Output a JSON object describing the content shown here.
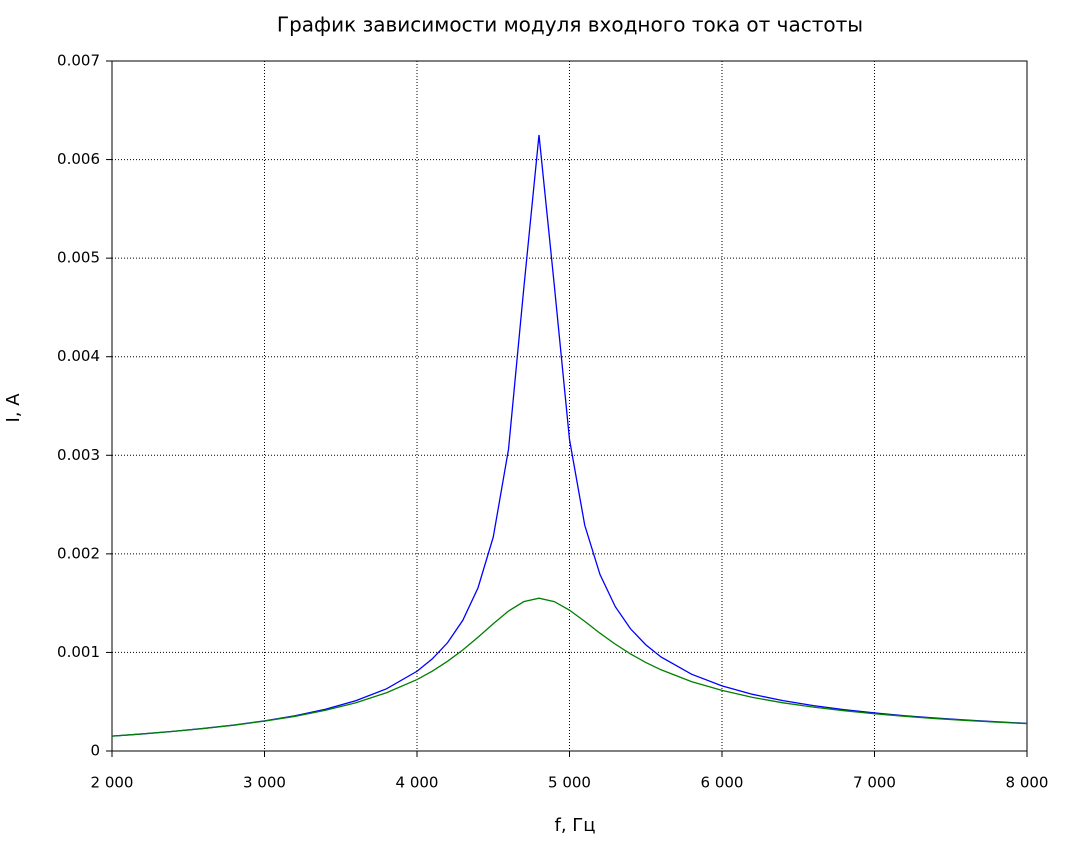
{
  "chart_data": {
    "type": "line",
    "title": "График зависимости модуля входного тока от частоты",
    "xlabel": "f, Гц",
    "ylabel": "I, A",
    "x": [
      2000,
      2200,
      2400,
      2600,
      2800,
      3000,
      3200,
      3400,
      3600,
      3800,
      4000,
      4100,
      4200,
      4300,
      4400,
      4500,
      4600,
      4700,
      4800,
      4900,
      5000,
      5100,
      5200,
      5300,
      5400,
      5500,
      5600,
      5800,
      6000,
      6200,
      6400,
      6600,
      6800,
      7000,
      7200,
      7400,
      7600,
      7800,
      8000
    ],
    "series": [
      {
        "color": "#0000ff",
        "values": [
          0.000151,
          0.000173,
          0.000199,
          0.000229,
          0.000264,
          0.000306,
          0.000358,
          0.000424,
          0.000511,
          0.000631,
          0.000809,
          0.000934,
          0.001098,
          0.001325,
          0.001655,
          0.00217,
          0.00306,
          0.00469,
          0.00625,
          0.00473,
          0.00316,
          0.00229,
          0.00179,
          0.001465,
          0.00124,
          0.001078,
          0.000954,
          0.000779,
          0.000661,
          0.000575,
          0.000511,
          0.00046,
          0.00042,
          0.000386,
          0.000358,
          0.000334,
          0.000314,
          0.000296,
          0.00028
        ]
      },
      {
        "color": "#007f00",
        "values": [
          0.000151,
          0.000174,
          0.000199,
          0.000228,
          0.000262,
          0.000303,
          0.000352,
          0.000413,
          0.000489,
          0.000591,
          0.000725,
          0.00081,
          0.00091,
          0.001025,
          0.001154,
          0.001291,
          0.00142,
          0.001515,
          0.00155,
          0.001516,
          0.001429,
          0.001315,
          0.001195,
          0.001084,
          0.000985,
          0.000898,
          0.000824,
          0.000704,
          0.000615,
          0.000544,
          0.000489,
          0.000445,
          0.000409,
          0.000378,
          0.000352,
          0.000329,
          0.00031,
          0.000293,
          0.000278
        ]
      }
    ],
    "xlim": [
      2000,
      8000
    ],
    "xticks": [
      {
        "value": 2000,
        "label": "2 000"
      },
      {
        "value": 3000,
        "label": "3 000"
      },
      {
        "value": 4000,
        "label": "4 000"
      },
      {
        "value": 5000,
        "label": "5 000"
      },
      {
        "value": 6000,
        "label": "6 000"
      },
      {
        "value": 7000,
        "label": "7 000"
      },
      {
        "value": 8000,
        "label": "8 000"
      }
    ],
    "ylim": [
      0,
      0.007
    ],
    "yticks": [
      0,
      0.001,
      0.002,
      0.003,
      0.004,
      0.005,
      0.006,
      0.007
    ],
    "grid": true
  }
}
